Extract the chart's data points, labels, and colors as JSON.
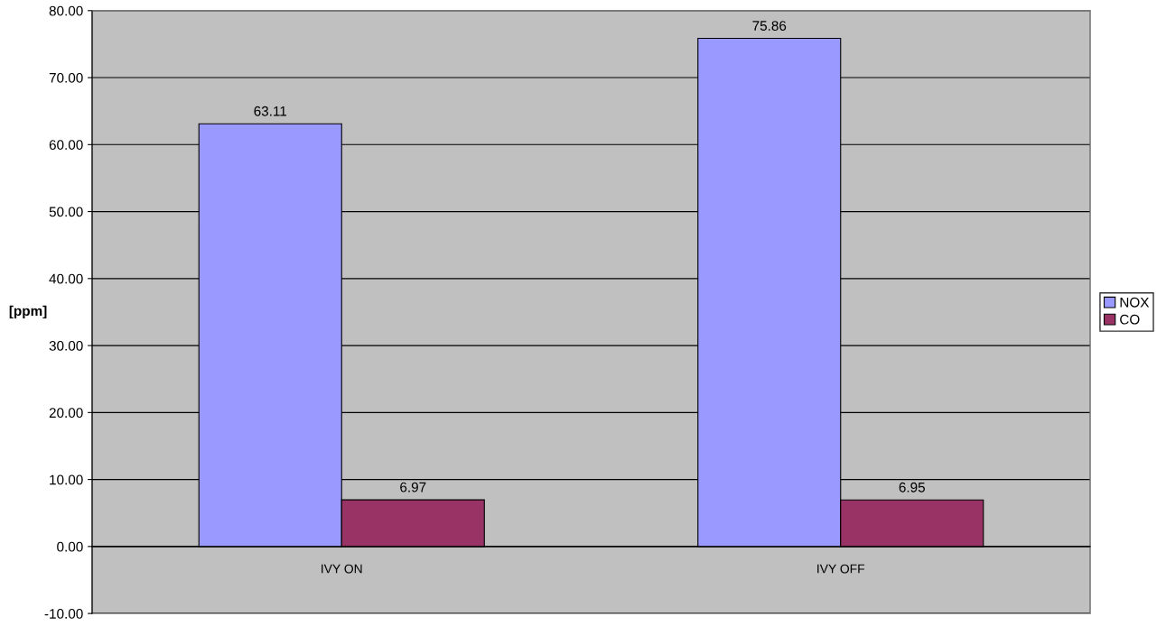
{
  "chart_data": {
    "type": "bar",
    "ylabel": "[ppm]",
    "categories": [
      "IVY ON",
      "IVY OFF"
    ],
    "series": [
      {
        "name": "NOX",
        "color": "#9999ff",
        "values": [
          63.11,
          75.86
        ]
      },
      {
        "name": "CO",
        "color": "#993366",
        "values": [
          6.97,
          6.95
        ]
      }
    ],
    "ylim": [
      -10,
      80
    ],
    "yticks": [
      {
        "value": -10,
        "label": "-10.00"
      },
      {
        "value": 0,
        "label": "0.00"
      },
      {
        "value": 10,
        "label": "10.00"
      },
      {
        "value": 20,
        "label": "20.00"
      },
      {
        "value": 30,
        "label": "30.00"
      },
      {
        "value": 40,
        "label": "40.00"
      },
      {
        "value": 50,
        "label": "50.00"
      },
      {
        "value": 60,
        "label": "60.00"
      },
      {
        "value": 70,
        "label": "70.00"
      },
      {
        "value": 80,
        "label": "80.00"
      }
    ],
    "grid": "y",
    "legend": "right",
    "data_labels": true
  }
}
